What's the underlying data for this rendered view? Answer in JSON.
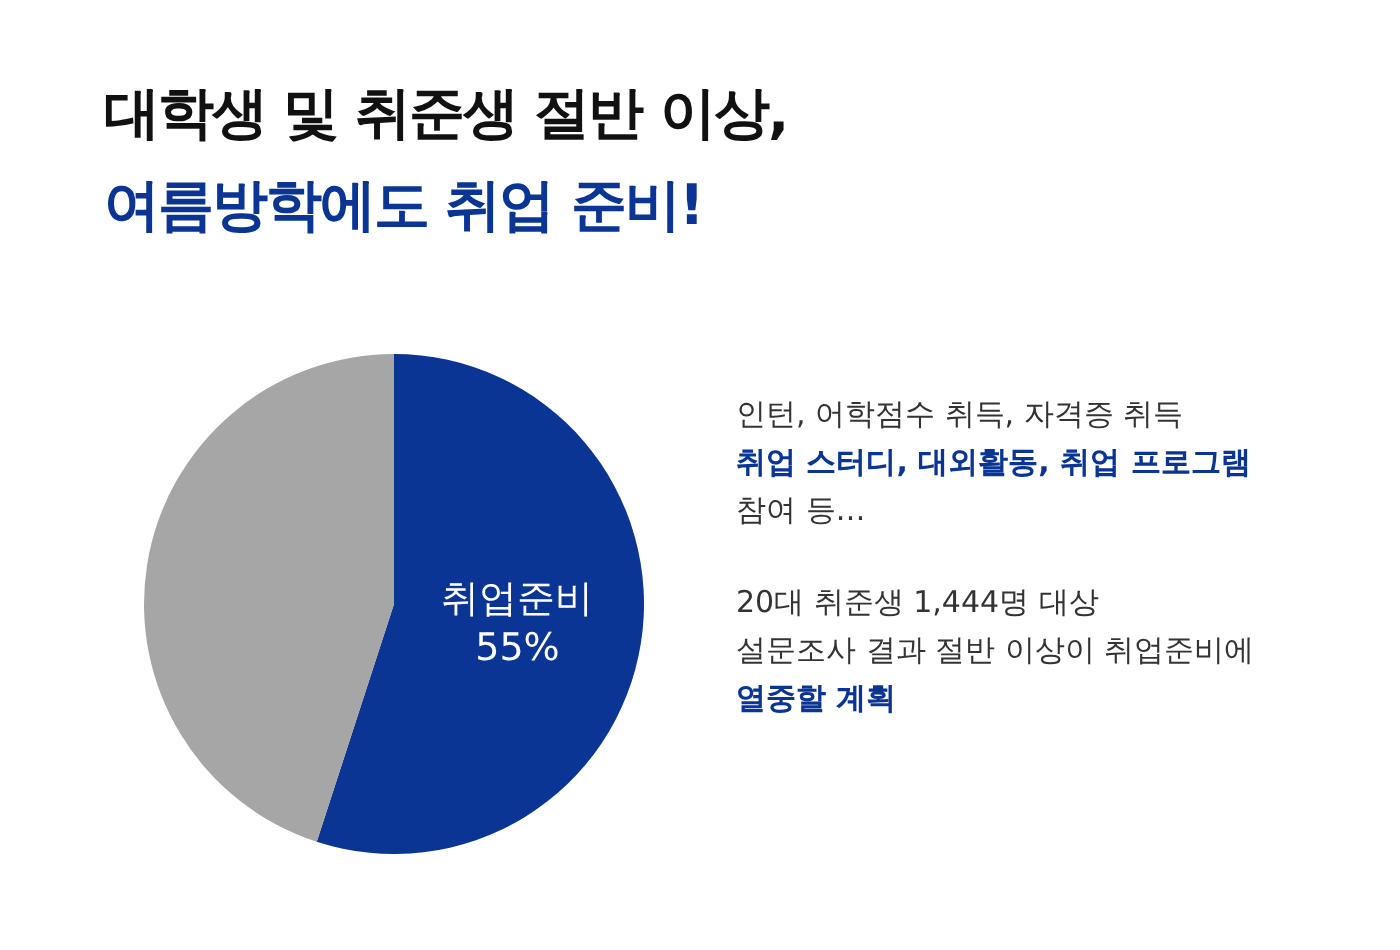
{
  "chart_data": {
    "type": "pie",
    "title": "대학생 및 취준생 절반 이상,",
    "subtitle": "여름방학에도 취업 준비!",
    "categories": [
      "취업준비",
      null
    ],
    "values": [
      55,
      45
    ],
    "colors": [
      "#0a3595",
      "#a6a6a6"
    ],
    "value_labels": [
      "55%",
      null
    ],
    "annotations": [
      "인턴, 어학점수 취득, 자격증 취득",
      "취업 스터디, 대외활동, 취업 프로그램",
      "참여 등…",
      "20대 취준생 1,444명 대상",
      "설문조사 결과 절반 이상이 취업준비에",
      "열중할 계획"
    ]
  }
}
